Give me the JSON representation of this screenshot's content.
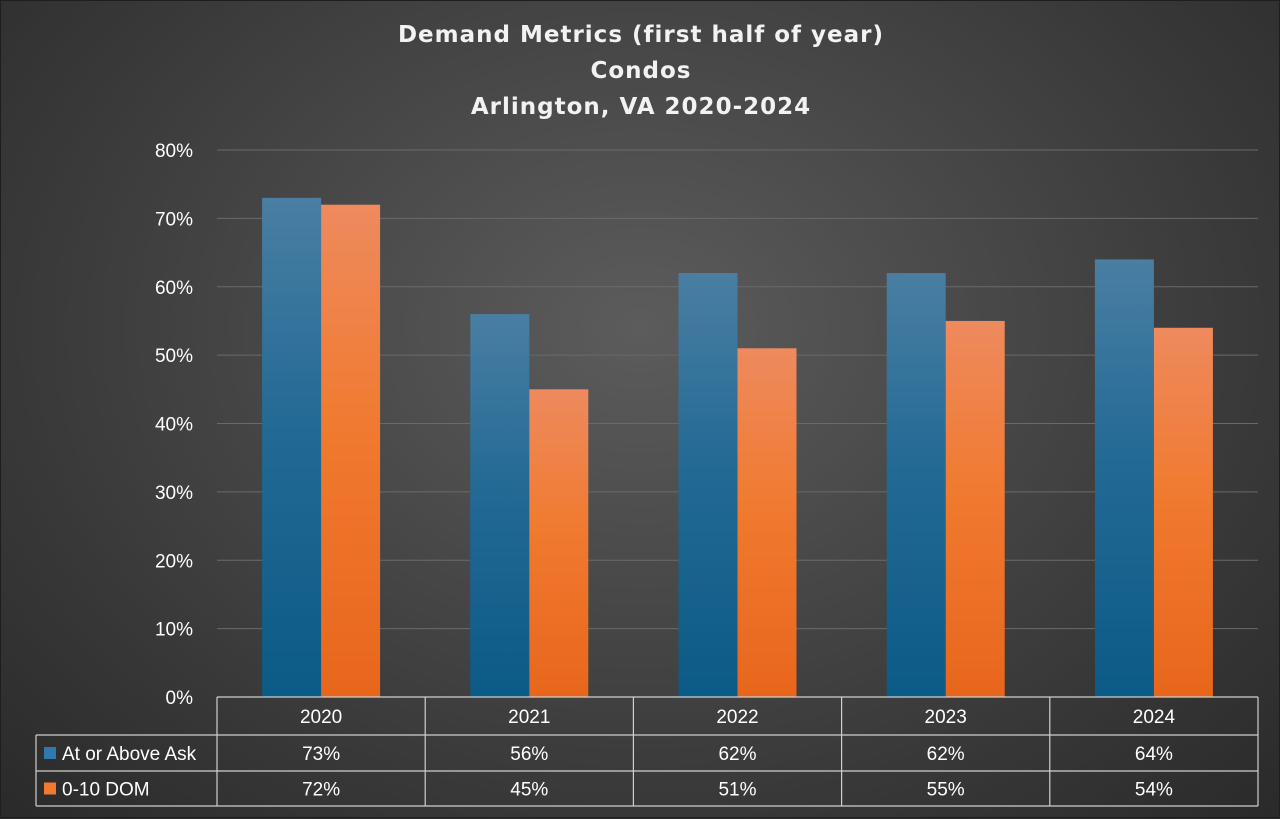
{
  "chart_data": {
    "type": "bar",
    "title_lines": [
      "Demand Metrics (first half of year)",
      "Condos",
      "Arlington, VA 2020-2024"
    ],
    "categories": [
      "2020",
      "2021",
      "2022",
      "2023",
      "2024"
    ],
    "series": [
      {
        "name": "At or Above Ask",
        "values": [
          73,
          56,
          62,
          62,
          64
        ],
        "value_labels": [
          "73%",
          "56%",
          "62%",
          "62%",
          "64%"
        ],
        "color": "#1f6fa0"
      },
      {
        "name": "0-10 DOM",
        "values": [
          72,
          45,
          51,
          55,
          54
        ],
        "value_labels": [
          "72%",
          "45%",
          "51%",
          "55%",
          "54%"
        ],
        "color": "#f07020"
      }
    ],
    "y_ticks": [
      "0%",
      "10%",
      "20%",
      "30%",
      "40%",
      "50%",
      "60%",
      "70%",
      "80%"
    ],
    "ylim": [
      0,
      80
    ],
    "grid": true,
    "legend": "data-table"
  }
}
